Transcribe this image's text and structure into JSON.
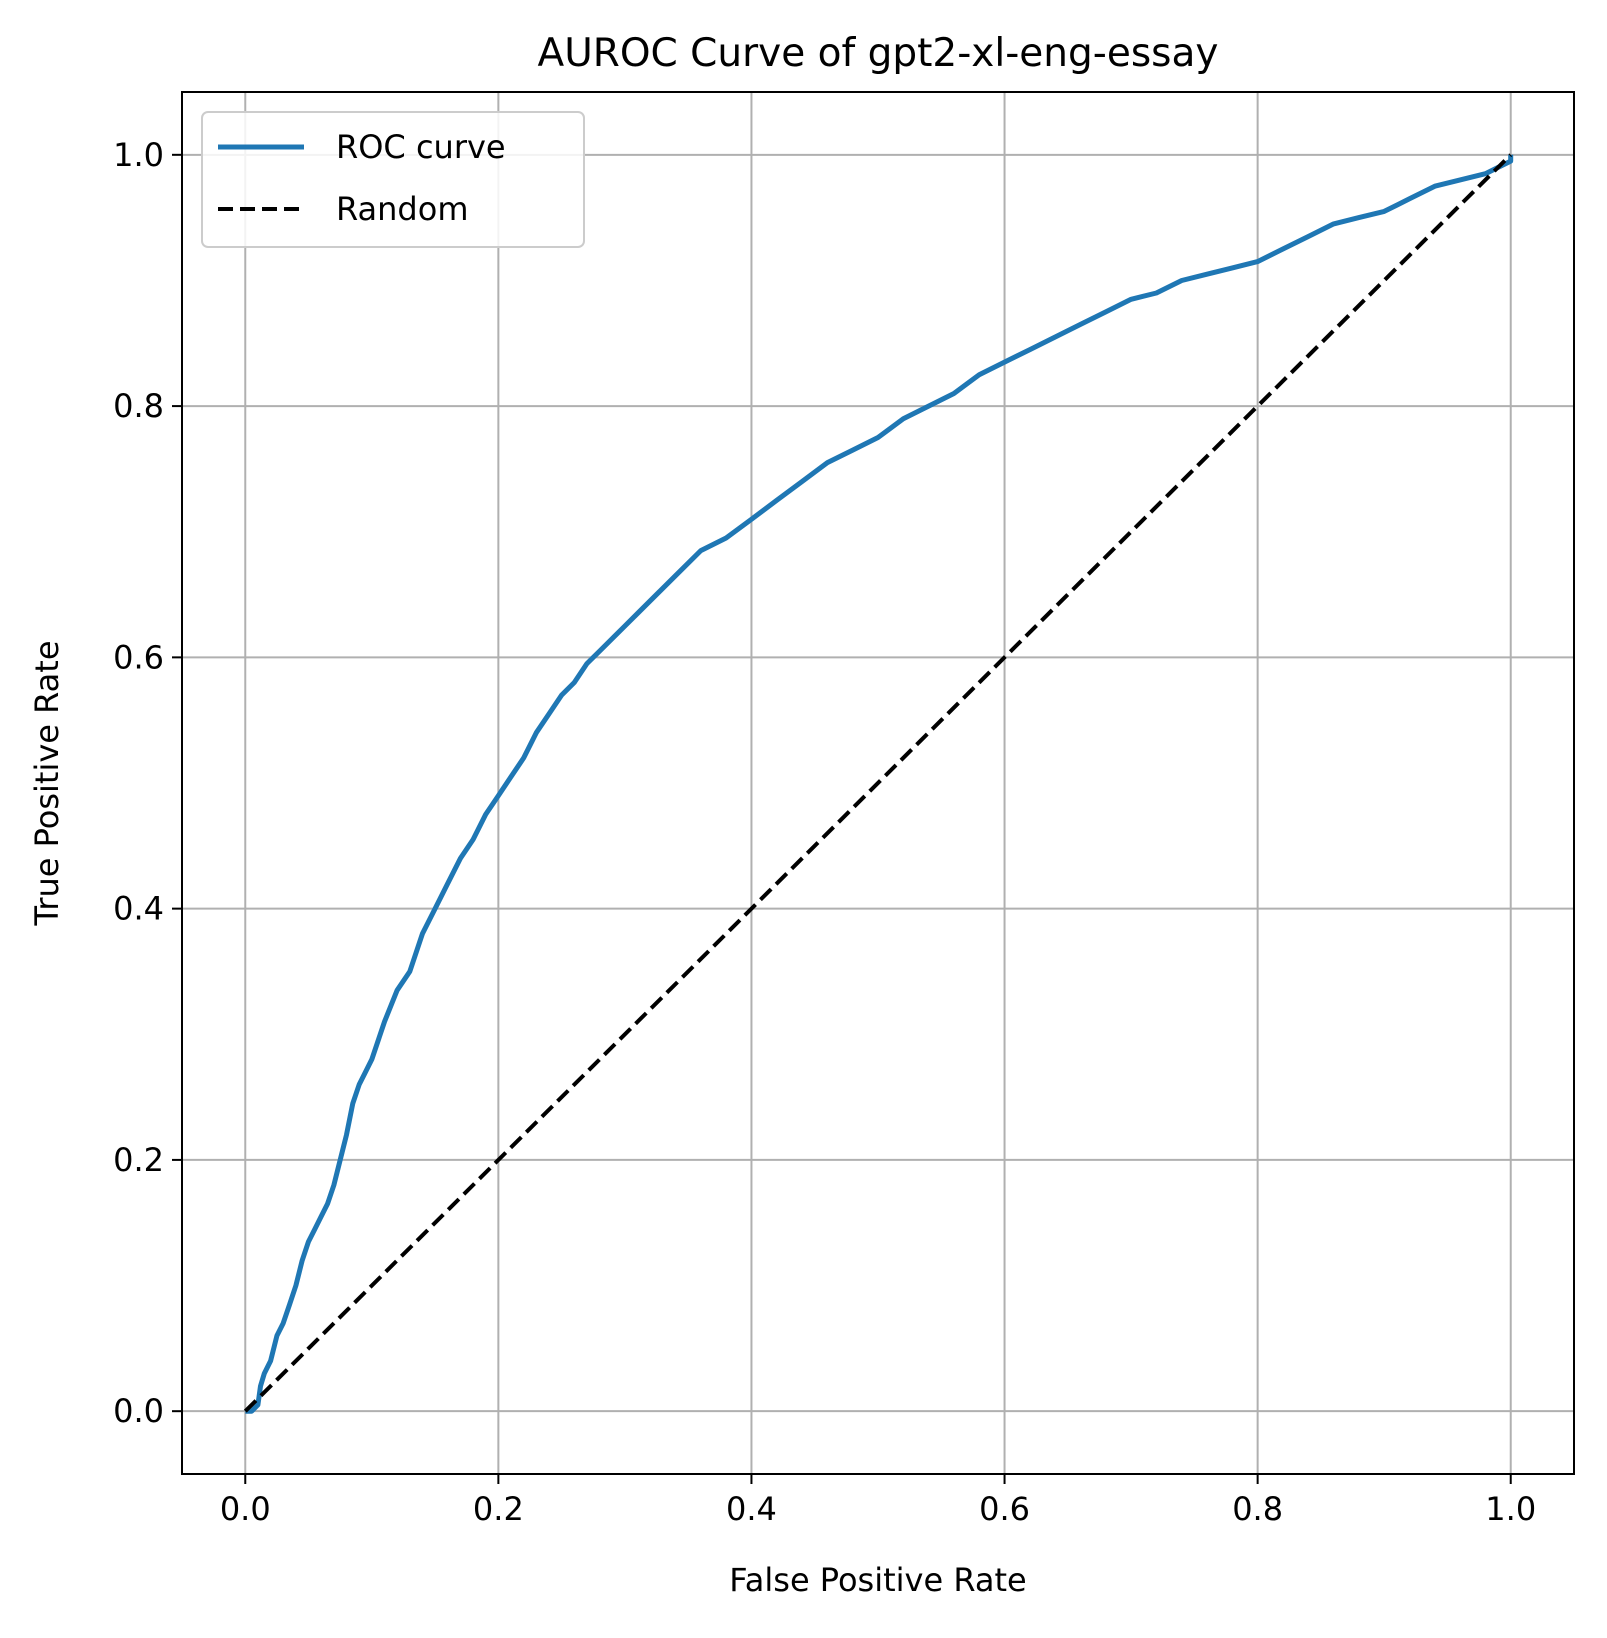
{
  "chart_data": {
    "type": "line",
    "title": "AUROC Curve of gpt2-xl-eng-essay",
    "xlabel": "False Positive Rate",
    "ylabel": "True Positive Rate",
    "xlim": [
      -0.05,
      1.05
    ],
    "ylim": [
      -0.05,
      1.05
    ],
    "xticks": [
      0.0,
      0.2,
      0.4,
      0.6,
      0.8,
      1.0
    ],
    "xtick_labels": [
      "0.0",
      "0.2",
      "0.4",
      "0.6",
      "0.8",
      "1.0"
    ],
    "yticks": [
      0.0,
      0.2,
      0.4,
      0.6,
      0.8,
      1.0
    ],
    "ytick_labels": [
      "0.0",
      "0.2",
      "0.4",
      "0.6",
      "0.8",
      "1.0"
    ],
    "grid": true,
    "legend_position": "top-left",
    "series": [
      {
        "name": "ROC curve",
        "color": "#1f77b4",
        "style": "solid",
        "x": [
          0.0,
          0.005,
          0.01,
          0.012,
          0.015,
          0.02,
          0.025,
          0.03,
          0.035,
          0.04,
          0.045,
          0.05,
          0.055,
          0.06,
          0.065,
          0.07,
          0.075,
          0.08,
          0.085,
          0.09,
          0.095,
          0.1,
          0.11,
          0.12,
          0.13,
          0.14,
          0.15,
          0.16,
          0.17,
          0.18,
          0.19,
          0.2,
          0.21,
          0.22,
          0.23,
          0.24,
          0.25,
          0.26,
          0.27,
          0.28,
          0.29,
          0.3,
          0.32,
          0.34,
          0.36,
          0.38,
          0.4,
          0.42,
          0.44,
          0.46,
          0.48,
          0.5,
          0.52,
          0.54,
          0.56,
          0.58,
          0.6,
          0.62,
          0.64,
          0.66,
          0.68,
          0.7,
          0.72,
          0.74,
          0.76,
          0.78,
          0.8,
          0.82,
          0.84,
          0.86,
          0.88,
          0.9,
          0.92,
          0.94,
          0.96,
          0.98,
          0.99,
          1.0,
          1.0
        ],
        "y": [
          0.0,
          0.0,
          0.005,
          0.02,
          0.03,
          0.04,
          0.06,
          0.07,
          0.085,
          0.1,
          0.12,
          0.135,
          0.145,
          0.155,
          0.165,
          0.18,
          0.2,
          0.22,
          0.245,
          0.26,
          0.27,
          0.28,
          0.31,
          0.335,
          0.35,
          0.38,
          0.4,
          0.42,
          0.44,
          0.455,
          0.475,
          0.49,
          0.505,
          0.52,
          0.54,
          0.555,
          0.57,
          0.58,
          0.595,
          0.605,
          0.615,
          0.625,
          0.645,
          0.665,
          0.685,
          0.695,
          0.71,
          0.725,
          0.74,
          0.755,
          0.765,
          0.775,
          0.79,
          0.8,
          0.81,
          0.825,
          0.835,
          0.845,
          0.855,
          0.865,
          0.875,
          0.885,
          0.89,
          0.9,
          0.905,
          0.91,
          0.915,
          0.925,
          0.935,
          0.945,
          0.95,
          0.955,
          0.965,
          0.975,
          0.98,
          0.985,
          0.99,
          0.995,
          1.0
        ]
      },
      {
        "name": "Random",
        "color": "#000000",
        "style": "dashed",
        "x": [
          0.0,
          1.0
        ],
        "y": [
          0.0,
          1.0
        ]
      }
    ]
  }
}
